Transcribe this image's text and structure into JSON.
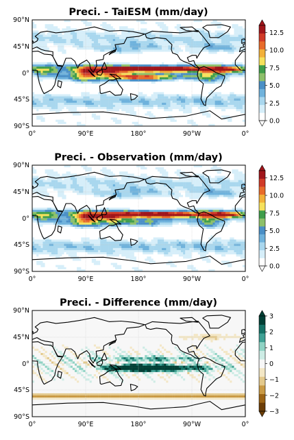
{
  "panels": [
    {
      "id": "taiesm",
      "title": "Preci. - TaiESM (mm/day)",
      "field": "model",
      "colorbar": {
        "ticks": [
          "0.0",
          "2.5",
          "5.0",
          "7.5",
          "10.0",
          "12.5"
        ],
        "range": [
          0,
          13.5
        ],
        "extend": "both",
        "colors": [
          "#ffffff",
          "#d6eef9",
          "#a9d7ee",
          "#6fb2dc",
          "#4a8fc6",
          "#8dc06a",
          "#3f9d4b",
          "#f6e15c",
          "#f2b039",
          "#e86b2a",
          "#d13a27",
          "#a0161b"
        ]
      }
    },
    {
      "id": "observation",
      "title": "Preci. - Observation (mm/day)",
      "field": "obs",
      "colorbar": {
        "ticks": [
          "0.0",
          "2.5",
          "5.0",
          "7.5",
          "10.0",
          "12.5"
        ],
        "range": [
          0,
          13.5
        ],
        "extend": "both",
        "colors": [
          "#ffffff",
          "#d6eef9",
          "#a9d7ee",
          "#6fb2dc",
          "#4a8fc6",
          "#8dc06a",
          "#3f9d4b",
          "#f6e15c",
          "#f2b039",
          "#e86b2a",
          "#d13a27",
          "#a0161b"
        ]
      }
    },
    {
      "id": "difference",
      "title": "Preci. - Difference (mm/day)",
      "field": "diff",
      "colorbar": {
        "ticks": [
          "−3",
          "−2",
          "−1",
          "0",
          "1",
          "2",
          "3"
        ],
        "range": [
          -3,
          3
        ],
        "extend": "both",
        "colors": [
          "#6b3d07",
          "#9c6416",
          "#c99a45",
          "#e3c98c",
          "#f3e7c6",
          "#f7f7f7",
          "#cdece5",
          "#8fd3c4",
          "#3fa194",
          "#157266",
          "#013f35"
        ]
      }
    }
  ],
  "map": {
    "lat_labels": [
      "90°N",
      "45°N",
      "0°",
      "45°S",
      "90°S"
    ],
    "lon_labels": [
      "0°",
      "90°E",
      "180°",
      "90°W",
      "0°"
    ]
  }
}
